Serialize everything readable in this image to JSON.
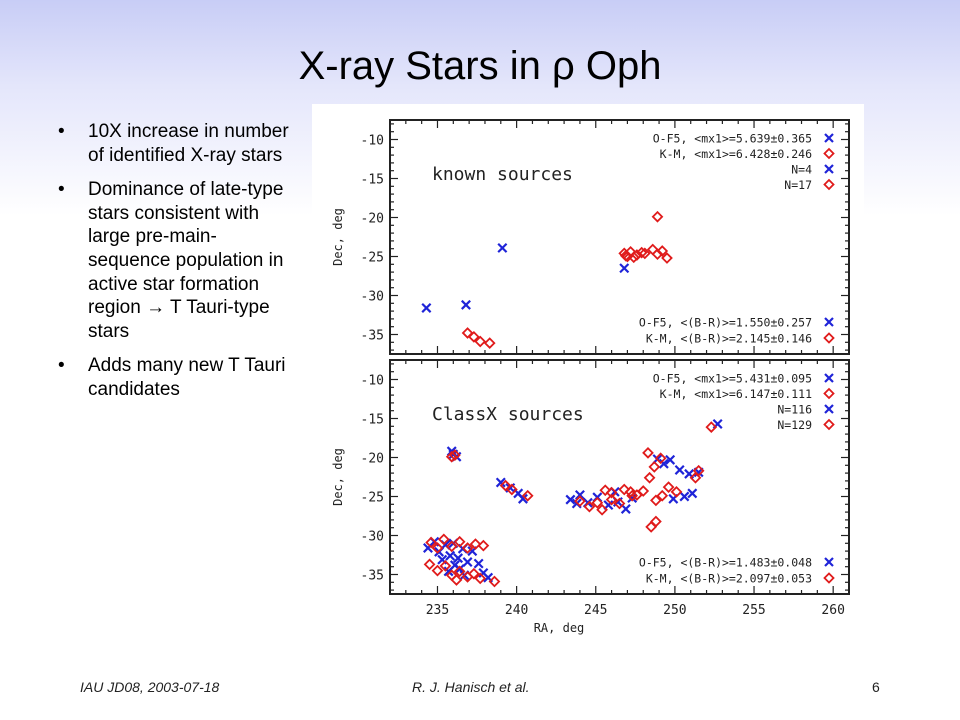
{
  "slide": {
    "title": "X-ray Stars in ρ Oph",
    "bullets": [
      "10X increase in number of identified X-ray stars",
      "Dominance of late-type stars consistent with large pre-main-sequence population in active star formation region  → T Tauri-type stars",
      "Adds many new T Tauri candidates"
    ],
    "bullet_marker": "•",
    "footer": {
      "left": "IAU JD08, 2003-07-18",
      "center": "R. J. Hanisch et al.",
      "page": "6"
    }
  },
  "chart_data": [
    {
      "type": "scatter",
      "panel_label": "known sources",
      "xlim": [
        232,
        261
      ],
      "ylim": [
        -37.5,
        -7.5
      ],
      "x_ticks": [
        235,
        240,
        245,
        250,
        255,
        260
      ],
      "y_ticks": [
        -10,
        -15,
        -20,
        -25,
        -30,
        -35
      ],
      "ylabel": "Dec, deg",
      "legend_top": [
        {
          "text": "O-F5, <mx1>=5.639±0.365",
          "marker": "cross"
        },
        {
          "text": "K-M, <mx1>=6.428±0.246",
          "marker": "diamond"
        },
        {
          "text": "N=4",
          "marker": "cross"
        },
        {
          "text": "N=17",
          "marker": "diamond"
        }
      ],
      "legend_bottom": [
        {
          "text": "O-F5, <(B-R)>=1.550±0.257",
          "marker": "cross"
        },
        {
          "text": "K-M, <(B-R)>=2.145±0.146",
          "marker": "diamond"
        }
      ],
      "series": [
        {
          "name": "O-F5",
          "marker": "cross",
          "color": "#1f24d8",
          "points": [
            [
              234.3,
              -31.6
            ],
            [
              236.8,
              -31.2
            ],
            [
              239.1,
              -23.9
            ],
            [
              246.8,
              -26.5
            ]
          ]
        },
        {
          "name": "K-M",
          "marker": "diamond",
          "color": "#e01b1b",
          "points": [
            [
              236.9,
              -34.8
            ],
            [
              237.3,
              -35.3
            ],
            [
              237.7,
              -35.9
            ],
            [
              238.3,
              -36.1
            ],
            [
              246.8,
              -24.6
            ],
            [
              247.0,
              -25.0
            ],
            [
              247.2,
              -24.4
            ],
            [
              247.4,
              -25.1
            ],
            [
              247.6,
              -24.8
            ],
            [
              247.9,
              -24.5
            ],
            [
              248.1,
              -24.6
            ],
            [
              248.6,
              -24.1
            ],
            [
              248.9,
              -24.7
            ],
            [
              249.2,
              -24.3
            ],
            [
              249.5,
              -25.2
            ],
            [
              248.9,
              -19.9
            ],
            [
              246.9,
              -24.9
            ]
          ]
        }
      ]
    },
    {
      "type": "scatter",
      "panel_label": "ClassX sources",
      "xlim": [
        232,
        261
      ],
      "ylim": [
        -37.5,
        -7.5
      ],
      "x_ticks": [
        235,
        240,
        245,
        250,
        255,
        260
      ],
      "y_ticks": [
        -10,
        -15,
        -20,
        -25,
        -30,
        -35
      ],
      "xlabel": "RA, deg",
      "ylabel": "Dec, deg",
      "legend_top": [
        {
          "text": "O-F5, <mx1>=5.431±0.095",
          "marker": "cross"
        },
        {
          "text": "K-M, <mx1>=6.147±0.111",
          "marker": "diamond"
        },
        {
          "text": "N=116",
          "marker": "cross"
        },
        {
          "text": "N=129",
          "marker": "diamond"
        }
      ],
      "legend_bottom": [
        {
          "text": "O-F5, <(B-R)>=1.483±0.048",
          "marker": "cross"
        },
        {
          "text": "K-M, <(B-R)>=2.097±0.053",
          "marker": "diamond"
        }
      ],
      "series": [
        {
          "name": "O-F5",
          "marker": "cross",
          "color": "#1f24d8",
          "points": [
            [
              234.4,
              -31.6
            ],
            [
              234.8,
              -30.8
            ],
            [
              235.1,
              -32.1
            ],
            [
              235.5,
              -31.2
            ],
            [
              235.8,
              -32.6
            ],
            [
              236.0,
              -31.0
            ],
            [
              236.3,
              -32.9
            ],
            [
              236.6,
              -31.7
            ],
            [
              236.1,
              -33.8
            ],
            [
              235.7,
              -34.6
            ],
            [
              236.4,
              -34.3
            ],
            [
              236.9,
              -33.4
            ],
            [
              237.2,
              -32.0
            ],
            [
              237.6,
              -33.6
            ],
            [
              235.3,
              -33.1
            ],
            [
              236.7,
              -35.1
            ],
            [
              237.9,
              -34.8
            ],
            [
              238.2,
              -35.4
            ],
            [
              235.9,
              -19.2
            ],
            [
              236.2,
              -19.9
            ],
            [
              239.0,
              -23.2
            ],
            [
              239.6,
              -23.9
            ],
            [
              240.1,
              -24.6
            ],
            [
              240.4,
              -25.3
            ],
            [
              243.4,
              -25.4
            ],
            [
              244.0,
              -24.8
            ],
            [
              244.5,
              -25.8
            ],
            [
              245.1,
              -25.1
            ],
            [
              245.8,
              -26.1
            ],
            [
              246.4,
              -25.7
            ],
            [
              246.9,
              -26.6
            ],
            [
              247.3,
              -25.2
            ],
            [
              246.2,
              -24.4
            ],
            [
              248.9,
              -20.2
            ],
            [
              249.3,
              -20.8
            ],
            [
              249.7,
              -20.3
            ],
            [
              250.3,
              -21.6
            ],
            [
              250.9,
              -22.1
            ],
            [
              251.5,
              -21.9
            ],
            [
              251.1,
              -24.6
            ],
            [
              250.6,
              -25.0
            ],
            [
              249.9,
              -25.3
            ],
            [
              252.7,
              -15.7
            ],
            [
              236.0,
              -19.6
            ],
            [
              243.8,
              -25.9
            ]
          ]
        },
        {
          "name": "K-M",
          "marker": "diamond",
          "color": "#e01b1b",
          "points": [
            [
              234.6,
              -30.9
            ],
            [
              235.0,
              -31.6
            ],
            [
              235.4,
              -30.5
            ],
            [
              235.9,
              -31.4
            ],
            [
              236.4,
              -30.8
            ],
            [
              236.9,
              -31.6
            ],
            [
              237.4,
              -31.1
            ],
            [
              237.9,
              -31.3
            ],
            [
              234.5,
              -33.7
            ],
            [
              235.0,
              -34.5
            ],
            [
              235.5,
              -33.9
            ],
            [
              235.9,
              -35.1
            ],
            [
              236.4,
              -34.6
            ],
            [
              236.9,
              -35.3
            ],
            [
              237.3,
              -34.9
            ],
            [
              236.2,
              -35.7
            ],
            [
              237.7,
              -35.5
            ],
            [
              238.6,
              -35.9
            ],
            [
              235.9,
              -19.9
            ],
            [
              236.1,
              -19.7
            ],
            [
              239.3,
              -23.6
            ],
            [
              239.7,
              -24.1
            ],
            [
              240.7,
              -24.9
            ],
            [
              244.0,
              -25.6
            ],
            [
              244.6,
              -26.3
            ],
            [
              245.1,
              -25.8
            ],
            [
              245.6,
              -24.2
            ],
            [
              246.0,
              -24.5
            ],
            [
              246.5,
              -25.9
            ],
            [
              246.8,
              -24.1
            ],
            [
              247.2,
              -24.4
            ],
            [
              247.6,
              -24.8
            ],
            [
              248.0,
              -24.3
            ],
            [
              247.3,
              -24.9
            ],
            [
              248.4,
              -22.6
            ],
            [
              248.7,
              -21.2
            ],
            [
              248.3,
              -19.4
            ],
            [
              249.1,
              -20.1
            ],
            [
              249.2,
              -24.9
            ],
            [
              249.6,
              -23.8
            ],
            [
              250.1,
              -24.4
            ],
            [
              248.8,
              -25.5
            ],
            [
              248.5,
              -28.9
            ],
            [
              248.8,
              -28.2
            ],
            [
              251.3,
              -22.6
            ],
            [
              251.5,
              -21.7
            ],
            [
              252.3,
              -16.1
            ],
            [
              245.4,
              -26.7
            ],
            [
              246.0,
              -25.4
            ]
          ]
        }
      ]
    }
  ]
}
